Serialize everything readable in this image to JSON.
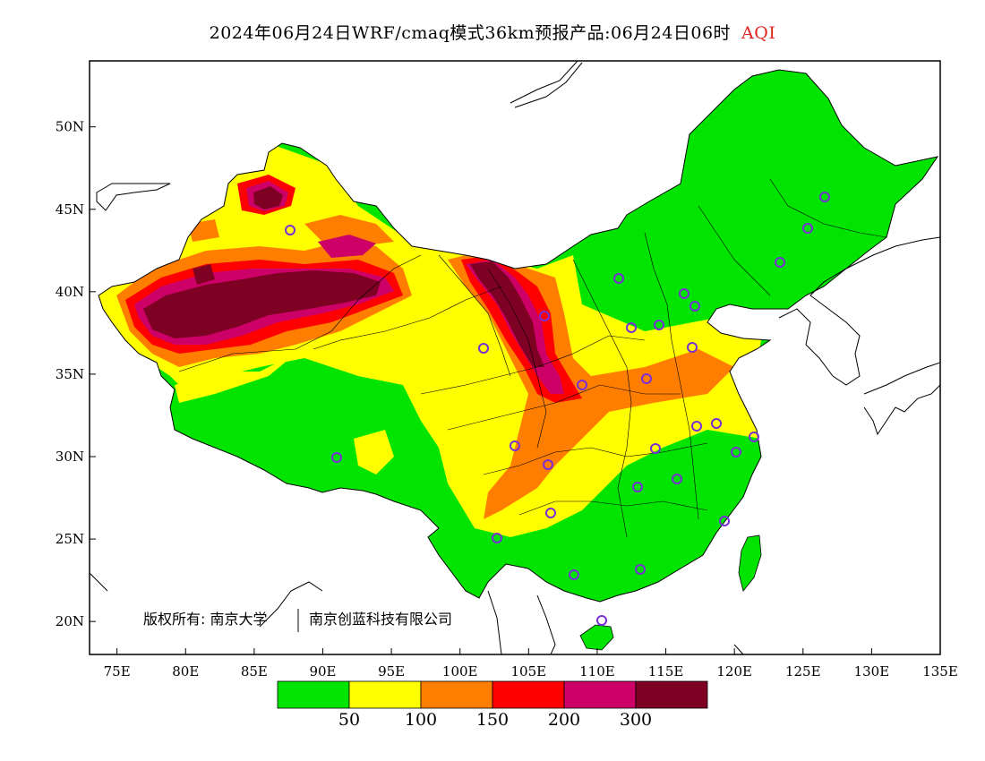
{
  "title": {
    "main": "2024年06月24日WRF/cmaq模式36km预报产品:06月24日06时",
    "variable": "AQI",
    "variable_color": "#e0241e"
  },
  "map": {
    "lon_range": [
      73,
      135
    ],
    "lat_range": [
      18,
      54
    ],
    "x_ticks": [
      "75E",
      "80E",
      "85E",
      "90E",
      "95E",
      "100E",
      "105E",
      "110E",
      "115E",
      "120E",
      "125E",
      "130E",
      "135E"
    ],
    "y_ticks": [
      "20N",
      "25N",
      "30N",
      "35N",
      "40N",
      "45N",
      "50N"
    ],
    "copyright": "版权所有: 南京大学",
    "copyright_2": "南京创蓝科技有限公司"
  },
  "legend": {
    "colors": [
      "#00e400",
      "#ffff00",
      "#ff7e00",
      "#ff0000",
      "#cc0066",
      "#7e0023"
    ],
    "labels": [
      "50",
      "100",
      "150",
      "200",
      "300"
    ]
  }
}
